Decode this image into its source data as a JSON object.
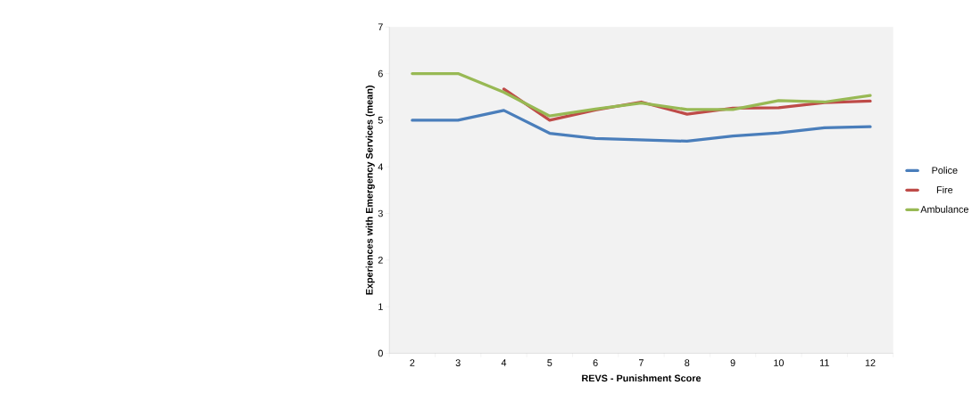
{
  "chart_data": {
    "type": "line",
    "xlabel": "REVS - Punishment Score",
    "ylabel": "Experiences with Emergency Services (mean)",
    "categories": [
      "2",
      "3",
      "4",
      "5",
      "6",
      "7",
      "8",
      "9",
      "10",
      "11",
      "12"
    ],
    "series": [
      {
        "name": "Police",
        "color": "#4a7ebb",
        "values": [
          5.0,
          5.0,
          5.21,
          4.72,
          4.61,
          4.58,
          4.55,
          4.66,
          4.73,
          4.84,
          4.86
        ]
      },
      {
        "name": "Fire",
        "color": "#be4b48",
        "values": [
          null,
          null,
          5.67,
          5.0,
          5.22,
          5.39,
          5.13,
          5.26,
          5.27,
          5.38,
          5.41
        ]
      },
      {
        "name": "Ambulance",
        "color": "#98b954",
        "values": [
          6.0,
          6.0,
          5.6,
          5.09,
          5.24,
          5.37,
          5.23,
          5.23,
          5.42,
          5.39,
          5.53
        ]
      }
    ],
    "ylim": [
      0,
      7
    ],
    "yticks": [
      0,
      1,
      2,
      3,
      4,
      5,
      6,
      7
    ],
    "legend": "right",
    "marker": "none",
    "line_style": "solid"
  }
}
